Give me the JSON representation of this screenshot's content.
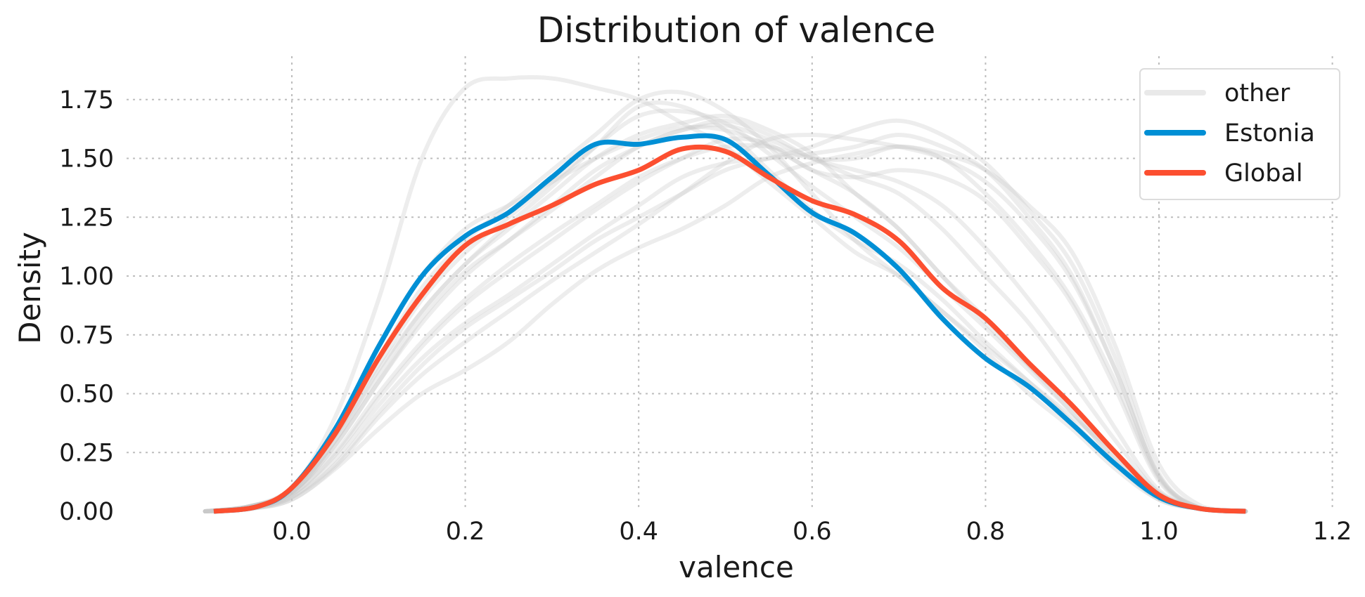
{
  "chart_data": {
    "type": "line",
    "title": "Distribution of valence",
    "xlabel": "valence",
    "ylabel": "Density",
    "xlim": [
      -0.16,
      1.21
    ],
    "ylim": [
      0,
      1.95
    ],
    "xticks": [
      "0.0",
      "0.2",
      "0.4",
      "0.6",
      "0.8",
      "1.0",
      "1.2"
    ],
    "yticks": [
      "0.00",
      "0.25",
      "0.50",
      "0.75",
      "1.00",
      "1.25",
      "1.50",
      "1.75"
    ],
    "grid": true,
    "legend_position": "top-right",
    "legend": [
      "other",
      "Estonia",
      "Global"
    ],
    "series": [
      {
        "name": "Estonia",
        "color": "#008fd5",
        "x": [
          -0.09,
          -0.04,
          0.0,
          0.05,
          0.1,
          0.15,
          0.2,
          0.25,
          0.3,
          0.35,
          0.4,
          0.45,
          0.5,
          0.55,
          0.6,
          0.65,
          0.7,
          0.75,
          0.8,
          0.85,
          0.9,
          0.95,
          1.0,
          1.05,
          1.1
        ],
        "y": [
          0.0,
          0.02,
          0.1,
          0.35,
          0.7,
          1.0,
          1.17,
          1.27,
          1.42,
          1.56,
          1.56,
          1.59,
          1.58,
          1.43,
          1.27,
          1.18,
          1.03,
          0.82,
          0.65,
          0.53,
          0.37,
          0.2,
          0.06,
          0.01,
          0.0
        ]
      },
      {
        "name": "Global",
        "color": "#fc4f30",
        "x": [
          -0.09,
          -0.04,
          0.0,
          0.05,
          0.1,
          0.15,
          0.2,
          0.25,
          0.3,
          0.35,
          0.4,
          0.45,
          0.5,
          0.55,
          0.6,
          0.65,
          0.7,
          0.75,
          0.8,
          0.85,
          0.9,
          0.95,
          1.0,
          1.05,
          1.1
        ],
        "y": [
          0.0,
          0.02,
          0.1,
          0.33,
          0.65,
          0.92,
          1.13,
          1.22,
          1.3,
          1.39,
          1.45,
          1.54,
          1.53,
          1.42,
          1.32,
          1.26,
          1.15,
          0.95,
          0.82,
          0.63,
          0.45,
          0.25,
          0.07,
          0.01,
          0.0
        ]
      }
    ],
    "other_series": {
      "color": "#c8c8c8",
      "x": [
        -0.1,
        -0.05,
        0.0,
        0.05,
        0.1,
        0.15,
        0.2,
        0.25,
        0.3,
        0.35,
        0.4,
        0.45,
        0.5,
        0.55,
        0.6,
        0.65,
        0.7,
        0.75,
        0.8,
        0.85,
        0.9,
        0.95,
        1.0,
        1.05,
        1.1
      ],
      "y": [
        [
          0.0,
          0.02,
          0.1,
          0.4,
          0.9,
          1.5,
          1.8,
          1.84,
          1.84,
          1.8,
          1.75,
          1.65,
          1.55,
          1.4,
          1.25,
          1.1,
          1.0,
          0.85,
          0.7,
          0.55,
          0.4,
          0.25,
          0.08,
          0.01,
          0.0
        ],
        [
          0.0,
          0.02,
          0.08,
          0.3,
          0.6,
          0.85,
          1.05,
          1.2,
          1.35,
          1.5,
          1.6,
          1.65,
          1.68,
          1.62,
          1.52,
          1.35,
          1.2,
          1.0,
          0.8,
          0.62,
          0.45,
          0.25,
          0.07,
          0.01,
          0.0
        ],
        [
          0.0,
          0.01,
          0.05,
          0.18,
          0.35,
          0.5,
          0.6,
          0.72,
          0.88,
          1.02,
          1.12,
          1.2,
          1.3,
          1.42,
          1.48,
          1.52,
          1.55,
          1.52,
          1.45,
          1.3,
          1.1,
          0.7,
          0.2,
          0.02,
          0.0
        ],
        [
          0.0,
          0.01,
          0.06,
          0.22,
          0.45,
          0.65,
          0.8,
          0.92,
          1.05,
          1.18,
          1.3,
          1.42,
          1.48,
          1.5,
          1.52,
          1.55,
          1.6,
          1.55,
          1.45,
          1.25,
          1.0,
          0.6,
          0.15,
          0.01,
          0.0
        ],
        [
          0.0,
          0.02,
          0.08,
          0.28,
          0.55,
          0.8,
          1.0,
          1.15,
          1.3,
          1.45,
          1.55,
          1.62,
          1.64,
          1.58,
          1.5,
          1.42,
          1.35,
          1.2,
          1.0,
          0.8,
          0.55,
          0.3,
          0.08,
          0.01,
          0.0
        ],
        [
          0.0,
          0.02,
          0.09,
          0.32,
          0.62,
          0.9,
          1.1,
          1.25,
          1.4,
          1.55,
          1.68,
          1.7,
          1.65,
          1.52,
          1.38,
          1.25,
          1.12,
          0.95,
          0.78,
          0.6,
          0.42,
          0.22,
          0.06,
          0.01,
          0.0
        ],
        [
          0.0,
          0.01,
          0.07,
          0.25,
          0.5,
          0.72,
          0.9,
          1.05,
          1.18,
          1.3,
          1.42,
          1.5,
          1.55,
          1.55,
          1.5,
          1.5,
          1.55,
          1.5,
          1.35,
          1.15,
          0.9,
          0.55,
          0.14,
          0.01,
          0.0
        ],
        [
          0.0,
          0.02,
          0.08,
          0.3,
          0.58,
          0.85,
          1.05,
          1.22,
          1.38,
          1.55,
          1.72,
          1.72,
          1.62,
          1.45,
          1.28,
          1.15,
          1.05,
          0.9,
          0.72,
          0.55,
          0.38,
          0.2,
          0.05,
          0.01,
          0.0
        ],
        [
          0.0,
          0.01,
          0.06,
          0.2,
          0.42,
          0.62,
          0.78,
          0.9,
          1.02,
          1.15,
          1.25,
          1.35,
          1.45,
          1.5,
          1.55,
          1.62,
          1.66,
          1.6,
          1.48,
          1.28,
          1.05,
          0.65,
          0.16,
          0.01,
          0.0
        ],
        [
          0.0,
          0.02,
          0.1,
          0.35,
          0.7,
          1.0,
          1.2,
          1.3,
          1.4,
          1.5,
          1.58,
          1.63,
          1.62,
          1.55,
          1.45,
          1.35,
          1.2,
          1.0,
          0.82,
          0.62,
          0.42,
          0.22,
          0.06,
          0.01,
          0.0
        ],
        [
          0.0,
          0.01,
          0.07,
          0.24,
          0.48,
          0.7,
          0.88,
          1.02,
          1.15,
          1.28,
          1.4,
          1.5,
          1.58,
          1.56,
          1.45,
          1.42,
          1.45,
          1.42,
          1.32,
          1.12,
          0.88,
          0.52,
          0.13,
          0.01,
          0.0
        ],
        [
          0.0,
          0.02,
          0.09,
          0.33,
          0.65,
          0.95,
          1.15,
          1.3,
          1.45,
          1.6,
          1.75,
          1.78,
          1.7,
          1.55,
          1.35,
          1.15,
          1.0,
          0.85,
          0.68,
          0.5,
          0.35,
          0.18,
          0.05,
          0.01,
          0.0
        ],
        [
          0.0,
          0.02,
          0.08,
          0.28,
          0.55,
          0.82,
          1.02,
          1.15,
          1.28,
          1.42,
          1.55,
          1.62,
          1.66,
          1.6,
          1.5,
          1.45,
          1.4,
          1.3,
          1.12,
          0.9,
          0.65,
          0.35,
          0.09,
          0.01,
          0.0
        ],
        [
          0.0,
          0.01,
          0.05,
          0.19,
          0.4,
          0.58,
          0.72,
          0.85,
          0.98,
          1.1,
          1.22,
          1.35,
          1.48,
          1.58,
          1.6,
          1.58,
          1.55,
          1.5,
          1.4,
          1.22,
          0.98,
          0.6,
          0.15,
          0.01,
          0.0
        ]
      ]
    }
  }
}
